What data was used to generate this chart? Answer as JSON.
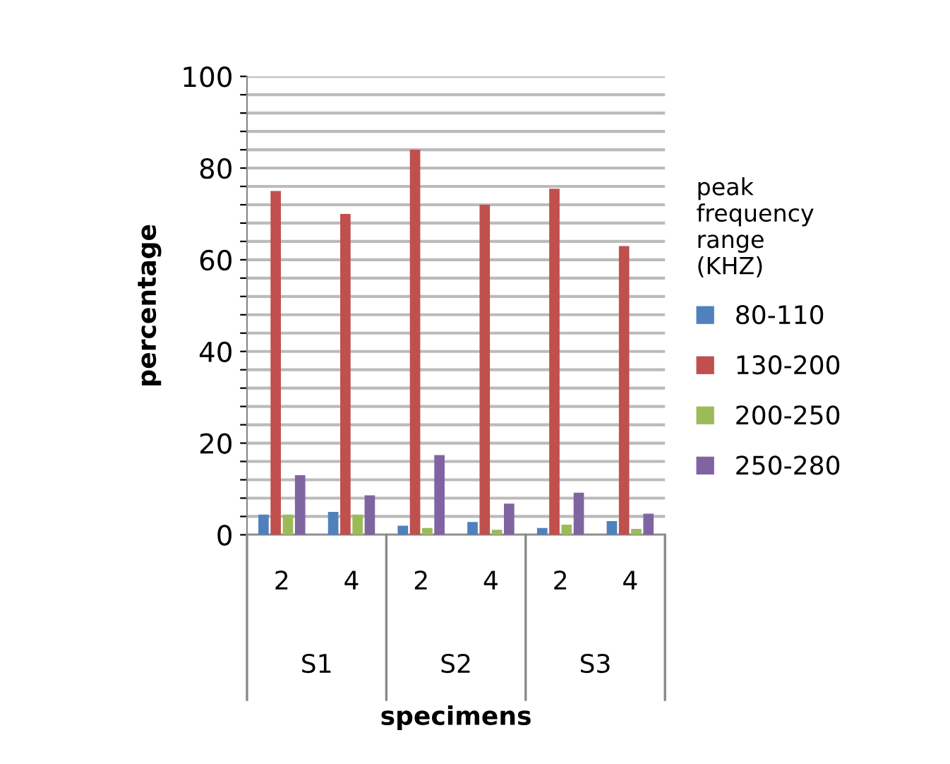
{
  "chart_data": {
    "type": "bar",
    "xlabel": "specimens",
    "ylabel": "percentage",
    "legend_title": "peak frequency range (KHZ)",
    "categories": [
      "2",
      "4",
      "2",
      "4",
      "2",
      "4"
    ],
    "annotations": [
      "S1",
      "S2",
      "S3"
    ],
    "series": [
      {
        "name": "80-110",
        "color": "#4f81bd",
        "values": [
          4.4,
          5,
          2,
          2.8,
          1.5,
          3
        ]
      },
      {
        "name": "130-200",
        "color": "#c0504d",
        "values": [
          75,
          70,
          84,
          72,
          75.5,
          63
        ]
      },
      {
        "name": "200-250",
        "color": "#9bbb59",
        "values": [
          4.4,
          4.4,
          1.5,
          1.1,
          2.2,
          1.3
        ]
      },
      {
        "name": "250-280",
        "color": "#8064a2",
        "values": [
          13,
          8.6,
          17.4,
          6.8,
          9.2,
          4.6
        ]
      }
    ],
    "ylim": [
      0,
      100
    ],
    "yticks": [
      0,
      {
        "value": 4,
        "label": null
      },
      {
        "value": 8,
        "label": null
      },
      {
        "value": 12,
        "label": null
      },
      {
        "value": 16,
        "label": null
      },
      20,
      {
        "value": 24,
        "label": null
      },
      {
        "value": 28,
        "label": null
      },
      {
        "value": 32,
        "label": null
      },
      {
        "value": 36,
        "label": null
      },
      40,
      {
        "value": 44,
        "label": null
      },
      {
        "value": 48,
        "label": null
      },
      {
        "value": 52,
        "label": null
      },
      {
        "value": 56,
        "label": null
      },
      60,
      {
        "value": 64,
        "label": null
      },
      {
        "value": 68,
        "label": null
      },
      {
        "value": 72,
        "label": null
      },
      {
        "value": 76,
        "label": null
      },
      80,
      {
        "value": 84,
        "label": null
      },
      {
        "value": 88,
        "label": null
      },
      {
        "value": 92,
        "label": null
      },
      {
        "value": 96,
        "label": null
      },
      100
    ],
    "grid": "y",
    "legend": "right"
  }
}
